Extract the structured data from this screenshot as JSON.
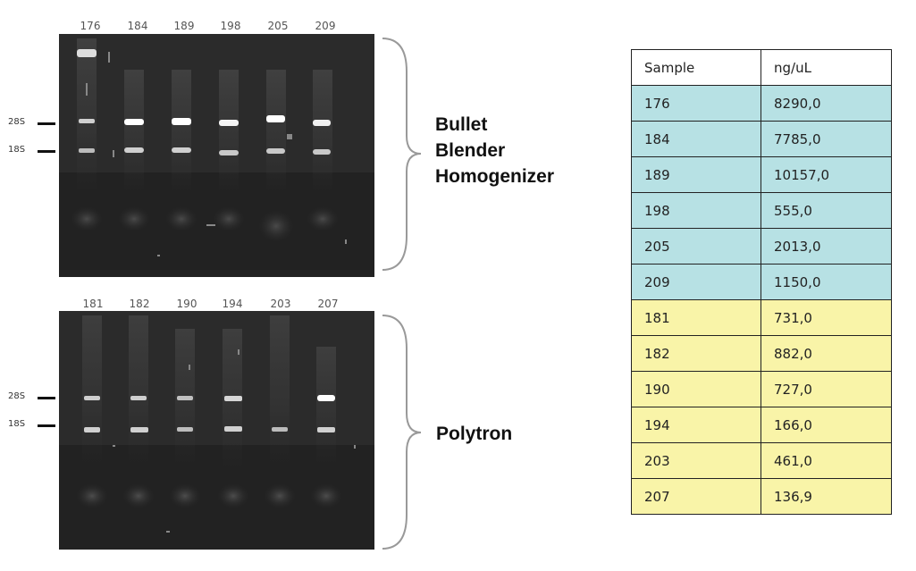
{
  "gels": [
    {
      "lanes": [
        "176",
        "184",
        "189",
        "198",
        "205",
        "209"
      ],
      "markers": [
        "28S",
        "18S"
      ],
      "group_label": [
        "Bullet",
        "Blender",
        "Homogenizer"
      ]
    },
    {
      "lanes": [
        "181",
        "182",
        "190",
        "194",
        "203",
        "207"
      ],
      "markers": [
        "28S",
        "18S"
      ],
      "group_label": [
        "Polytron"
      ]
    }
  ],
  "table": {
    "headers": [
      "Sample",
      "ng/uL"
    ],
    "rows": [
      {
        "sample": "176",
        "value": "8290,0",
        "group": "blue"
      },
      {
        "sample": "184",
        "value": "7785,0",
        "group": "blue"
      },
      {
        "sample": "189",
        "value": "10157,0",
        "group": "blue"
      },
      {
        "sample": "198",
        "value": "555,0",
        "group": "blue"
      },
      {
        "sample": "205",
        "value": "2013,0",
        "group": "blue"
      },
      {
        "sample": "209",
        "value": "1150,0",
        "group": "blue"
      },
      {
        "sample": "181",
        "value": "731,0",
        "group": "yellow"
      },
      {
        "sample": "182",
        "value": "882,0",
        "group": "yellow"
      },
      {
        "sample": "190",
        "value": "727,0",
        "group": "yellow"
      },
      {
        "sample": "194",
        "value": "166,0",
        "group": "yellow"
      },
      {
        "sample": "203",
        "value": "461,0",
        "group": "yellow"
      },
      {
        "sample": "207",
        "value": "136,9",
        "group": "yellow"
      }
    ]
  },
  "colors": {
    "gel_background": "#2a2a2a",
    "band": "#ffffff",
    "blue_rows": "#b7e1e4",
    "yellow_rows": "#f9f4a8"
  }
}
